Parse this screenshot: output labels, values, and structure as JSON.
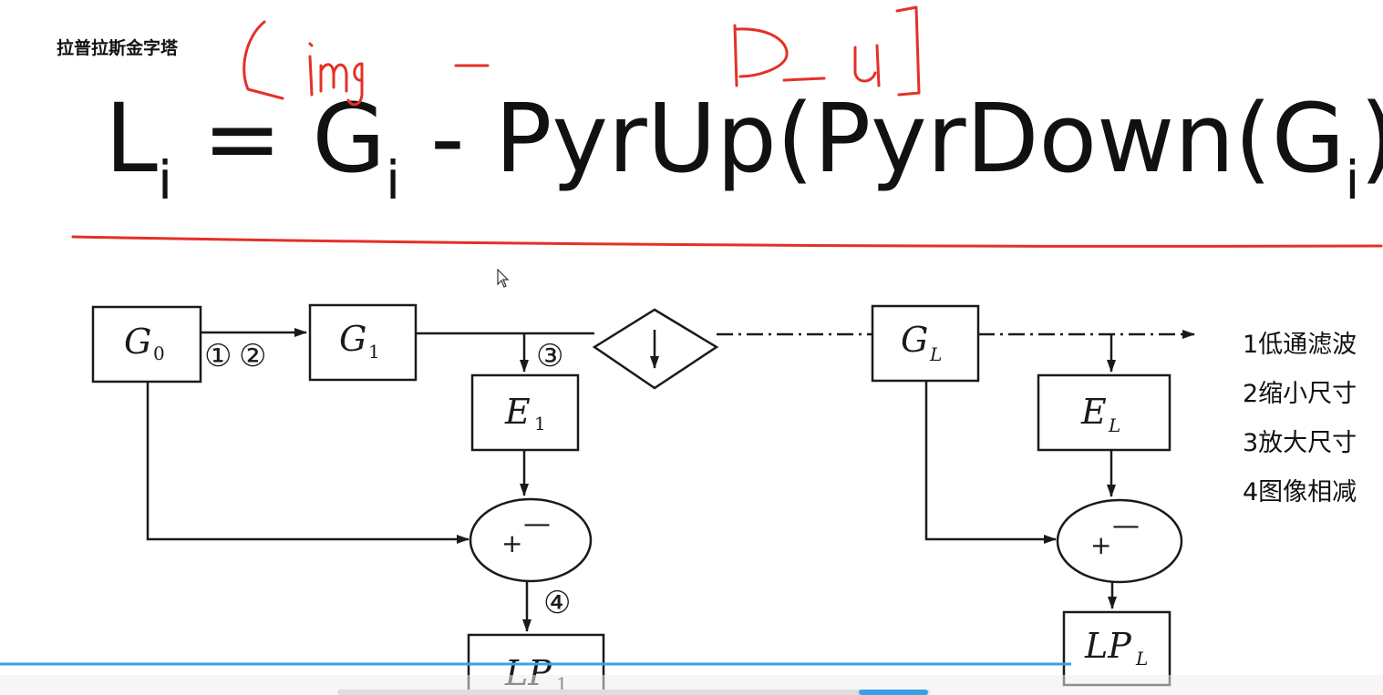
{
  "title": "拉普拉斯金字塔",
  "formula": {
    "L": "L",
    "eq": " = ",
    "G": "G",
    "minus": " - ",
    "pyr_up": "PyrUp(PyrDown(G",
    "close": "))",
    "sub": "i"
  },
  "annotation_handwritten": [
    "img",
    "-",
    "D_U"
  ],
  "legend": [
    "1低通滤波",
    "2缩小尺寸",
    "3放大尺寸",
    "4图像相减"
  ],
  "diagram": {
    "nodes": {
      "g0": "G",
      "g0_sub": "0",
      "g1": "G",
      "g1_sub": "1",
      "gl": "G",
      "gl_sub": "L",
      "e1": "E",
      "e1_sub": "1",
      "el": "E",
      "el_sub": "L",
      "lp1": "LP",
      "lp1_sub": "1",
      "lpl": "LP",
      "lpl_sub": "L"
    },
    "step_markers": [
      "①",
      "②",
      "③",
      "④"
    ],
    "plus": "+",
    "minus": "—",
    "downsample_symbol": "↓"
  },
  "colors": {
    "annotation_red": "#e53027",
    "diagram_black": "#1a1a1a",
    "progress_blue": "#3aa0e8"
  }
}
